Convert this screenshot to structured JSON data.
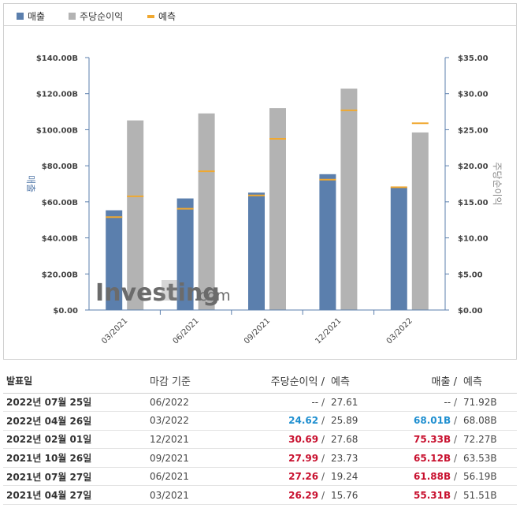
{
  "legend": {
    "revenue": "매출",
    "eps": "주당순이익",
    "forecast": "예측"
  },
  "colors": {
    "revenue": "#5b7fad",
    "eps": "#b3b3b3",
    "forecast": "#f0a830",
    "positive": "#c8102e",
    "neutral": "#1f8fd0"
  },
  "watermark": {
    "brand": "Investing",
    "suffix": ".com"
  },
  "chart_data": {
    "type": "bar",
    "categories": [
      "03/2021",
      "06/2021",
      "09/2021",
      "12/2021",
      "03/2022"
    ],
    "series": [
      {
        "name": "매출",
        "axis": "left",
        "values": [
          55.31,
          61.88,
          65.12,
          75.33,
          68.01
        ]
      },
      {
        "name": "주당순이익",
        "axis": "right",
        "values": [
          26.29,
          27.26,
          27.99,
          30.69,
          24.62
        ]
      }
    ],
    "forecast": {
      "name": "예측",
      "revenue": [
        51.51,
        56.19,
        63.53,
        72.27,
        68.08
      ],
      "eps": [
        15.76,
        19.24,
        23.73,
        27.68,
        25.89
      ]
    },
    "left_axis": {
      "label": "매출",
      "ticks": [
        "$0.00",
        "$20.00B",
        "$40.00B",
        "$60.00B",
        "$80.00B",
        "$100.00B",
        "$120.00B",
        "$140.00B"
      ],
      "range": [
        0,
        140
      ]
    },
    "right_axis": {
      "label": "주당순이익",
      "ticks": [
        "$0.00",
        "$5.00",
        "$10.00",
        "$15.00",
        "$20.00",
        "$25.00",
        "$30.00",
        "$35.00"
      ],
      "range": [
        0,
        35
      ]
    },
    "grid": false,
    "legend_position": "top-left"
  },
  "table": {
    "headers": {
      "date": "발표일",
      "period": "마감 기준",
      "eps": "주당순이익",
      "sep": "/",
      "eps_forecast": "예측",
      "revenue": "매출",
      "revenue_forecast": "예측"
    },
    "rows": [
      {
        "date": "2022년 07월 25일",
        "period": "06/2022",
        "eps": "--",
        "eps_tone": "plain",
        "eps_forecast": "27.61",
        "revenue": "--",
        "rev_tone": "plain",
        "revenue_forecast": "71.92B"
      },
      {
        "date": "2022년 04월 26일",
        "period": "03/2022",
        "eps": "24.62",
        "eps_tone": "blue",
        "eps_forecast": "25.89",
        "revenue": "68.01B",
        "rev_tone": "blue",
        "revenue_forecast": "68.08B"
      },
      {
        "date": "2022년 02월 01일",
        "period": "12/2021",
        "eps": "30.69",
        "eps_tone": "red",
        "eps_forecast": "27.68",
        "revenue": "75.33B",
        "rev_tone": "red",
        "revenue_forecast": "72.27B"
      },
      {
        "date": "2021년 10월 26일",
        "period": "09/2021",
        "eps": "27.99",
        "eps_tone": "red",
        "eps_forecast": "23.73",
        "revenue": "65.12B",
        "rev_tone": "red",
        "revenue_forecast": "63.53B"
      },
      {
        "date": "2021년 07월 27일",
        "period": "06/2021",
        "eps": "27.26",
        "eps_tone": "red",
        "eps_forecast": "19.24",
        "revenue": "61.88B",
        "rev_tone": "red",
        "revenue_forecast": "56.19B"
      },
      {
        "date": "2021년 04월 27일",
        "period": "03/2021",
        "eps": "26.29",
        "eps_tone": "red",
        "eps_forecast": "15.76",
        "revenue": "55.31B",
        "rev_tone": "red",
        "revenue_forecast": "51.51B"
      }
    ]
  }
}
